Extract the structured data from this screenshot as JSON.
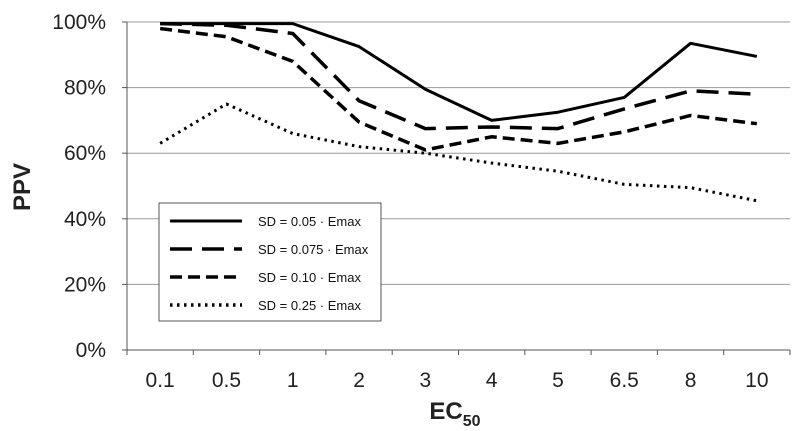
{
  "chart_data": {
    "type": "line",
    "xlabel": "EC",
    "xlabel_subscript": "50",
    "ylabel": "PPV",
    "categories": [
      "0.1",
      "0.5",
      "1",
      "2",
      "3",
      "4",
      "5",
      "6.5",
      "8",
      "10"
    ],
    "ylim": [
      0,
      100
    ],
    "yticks": [
      "0%",
      "20%",
      "40%",
      "60%",
      "80%",
      "100%"
    ],
    "ytick_values": [
      0,
      20,
      40,
      60,
      80,
      100
    ],
    "grid": true,
    "legend_position": "bottom-left",
    "series": [
      {
        "name": "SD = 0.05 · Emax",
        "dash": "solid",
        "values": [
          99.5,
          99.5,
          99.5,
          92.5,
          79.5,
          70,
          72.5,
          77,
          93.5,
          89.5
        ]
      },
      {
        "name": "SD = 0.075 · Emax",
        "dash": "long-dash",
        "values": [
          99.5,
          99,
          96.5,
          76,
          67.5,
          68,
          67.5,
          73.5,
          79,
          78
        ]
      },
      {
        "name": "SD = 0.10 · Emax",
        "dash": "short-dash",
        "values": [
          98,
          95.5,
          88,
          69.5,
          61,
          65,
          63,
          66.5,
          71.5,
          69
        ]
      },
      {
        "name": "SD = 0.25 · Emax",
        "dash": "dotted",
        "values": [
          63,
          75,
          66,
          62,
          60,
          57,
          54.5,
          50.5,
          49.5,
          45.5
        ]
      }
    ]
  }
}
